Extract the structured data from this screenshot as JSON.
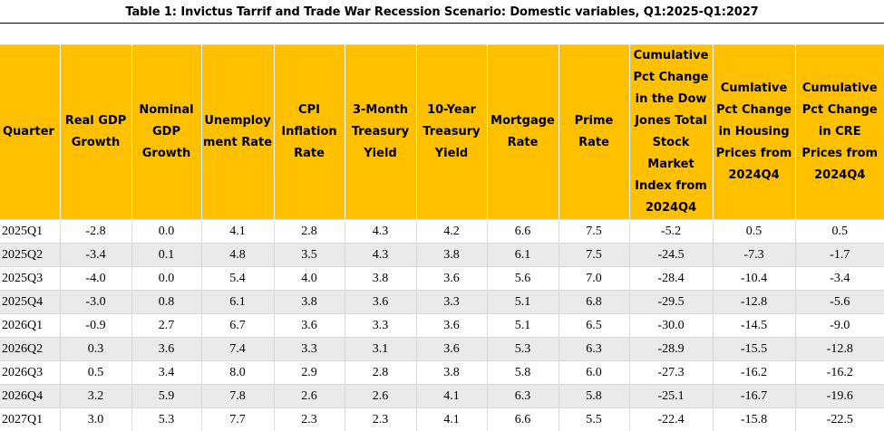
{
  "title": "Table 1:  Invictus Tarrif and Trade War Recession Scenario:  Domestic variables, Q1:2025-Q1:2027",
  "headers": [
    "Quarter",
    "Real GDP Growth",
    "Nominal GDP Growth",
    "Unemployment Rate",
    "CPI Inflation Rate",
    "3-Month Treasury Yield",
    "10-Year Treasury Yield",
    "Mortgage Rate",
    "Prime Rate",
    "Cumulative Pct Change in the Dow Jones Total Stock Market Index from 2024Q4",
    "Cumlative Pct Change in Housing Prices from 2024Q4",
    "Cumulative Pct Change in CRE Prices from 2024Q4"
  ],
  "rows": [
    [
      "2025Q1",
      "-2.8",
      "0.0",
      "4.1",
      "2.8",
      "4.3",
      "4.2",
      "6.6",
      "7.5",
      "-5.2",
      "0.5",
      "0.5"
    ],
    [
      "2025Q2",
      "-3.4",
      "0.1",
      "4.8",
      "3.5",
      "4.3",
      "3.8",
      "6.1",
      "7.5",
      "-24.5",
      "-7.3",
      "-1.7"
    ],
    [
      "2025Q3",
      "-4.0",
      "0.0",
      "5.4",
      "4.0",
      "3.8",
      "3.6",
      "5.6",
      "7.0",
      "-28.4",
      "-10.4",
      "-3.4"
    ],
    [
      "2025Q4",
      "-3.0",
      "0.8",
      "6.1",
      "3.8",
      "3.6",
      "3.3",
      "5.1",
      "6.8",
      "-29.5",
      "-12.8",
      "-5.6"
    ],
    [
      "2026Q1",
      "-0.9",
      "2.7",
      "6.7",
      "3.6",
      "3.3",
      "3.6",
      "5.1",
      "6.5",
      "-30.0",
      "-14.5",
      "-9.0"
    ],
    [
      "2026Q2",
      "0.3",
      "3.6",
      "7.4",
      "3.3",
      "3.1",
      "3.6",
      "5.3",
      "6.3",
      "-28.9",
      "-15.5",
      "-12.8"
    ],
    [
      "2026Q3",
      "0.5",
      "3.4",
      "8.0",
      "2.9",
      "2.8",
      "3.8",
      "5.8",
      "6.0",
      "-27.3",
      "-16.2",
      "-16.2"
    ],
    [
      "2026Q4",
      "3.2",
      "5.9",
      "7.8",
      "2.6",
      "2.6",
      "4.1",
      "6.3",
      "5.8",
      "-25.1",
      "-16.7",
      "-19.6"
    ],
    [
      "2027Q1",
      "3.0",
      "5.3",
      "7.7",
      "2.3",
      "2.3",
      "4.1",
      "6.6",
      "5.5",
      "-22.4",
      "-15.8",
      "-22.5"
    ]
  ],
  "colors": {
    "header_bg": "#ffc000",
    "stripe_bg": "#eaeaea",
    "grid": "#d9d9d9"
  }
}
